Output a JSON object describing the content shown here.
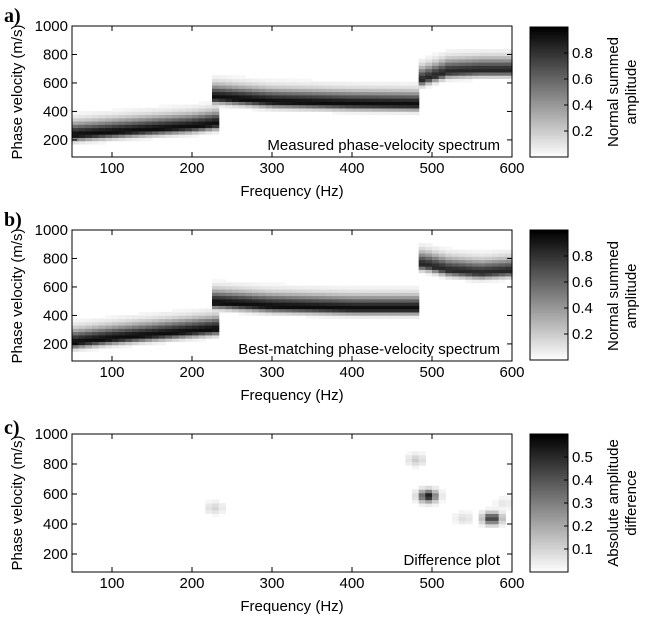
{
  "chart_data": [
    {
      "type": "heatmap",
      "panel_label": "a)",
      "annotation": "Measured phase-velocity spectrum",
      "xlabel": "Frequency (Hz)",
      "ylabel": "Phase velocity (m/s)",
      "xlim": [
        50,
        600
      ],
      "ylim": [
        80,
        1000
      ],
      "xticks": [
        100,
        200,
        300,
        400,
        500,
        600
      ],
      "yticks": [
        200,
        400,
        600,
        800,
        1000
      ],
      "colorbar": {
        "label": [
          "Normal summed",
          "amplitude"
        ],
        "range": [
          0,
          1
        ],
        "ticks": [
          0.2,
          0.4,
          0.6,
          0.8
        ]
      },
      "ridges": [
        {
          "x": [
            50,
            100,
            150,
            200,
            230
          ],
          "y": [
            235,
            255,
            275,
            295,
            315
          ],
          "peak": 0.95
        },
        {
          "x": [
            232,
            300,
            400,
            480
          ],
          "y": [
            500,
            470,
            455,
            450
          ],
          "peak": 0.95
        },
        {
          "x": [
            485,
            520,
            560,
            600
          ],
          "y": [
            620,
            680,
            690,
            690
          ],
          "peak": 0.85
        }
      ]
    },
    {
      "type": "heatmap",
      "panel_label": "b)",
      "annotation": "Best-matching phase-velocity spectrum",
      "xlabel": "Frequency (Hz)",
      "ylabel": "Phase velocity (m/s)",
      "xlim": [
        50,
        600
      ],
      "ylim": [
        80,
        1000
      ],
      "xticks": [
        100,
        200,
        300,
        400,
        500,
        600
      ],
      "yticks": [
        200,
        400,
        600,
        800,
        1000
      ],
      "colorbar": {
        "label": [
          "Normal summed",
          "amplitude"
        ],
        "range": [
          0,
          1
        ],
        "ticks": [
          0.2,
          0.4,
          0.6,
          0.8
        ]
      },
      "ridges": [
        {
          "x": [
            50,
            100,
            150,
            200,
            230
          ],
          "y": [
            210,
            240,
            265,
            290,
            305
          ],
          "peak": 0.95
        },
        {
          "x": [
            232,
            300,
            400,
            480
          ],
          "y": [
            490,
            465,
            450,
            450
          ],
          "peak": 0.95
        },
        {
          "x": [
            490,
            520,
            560,
            600
          ],
          "y": [
            760,
            720,
            700,
            715
          ],
          "peak": 0.85
        }
      ]
    },
    {
      "type": "heatmap",
      "panel_label": "c)",
      "annotation": "Difference plot",
      "xlabel": "Frequency (Hz)",
      "ylabel": "Phase velocity (m/s)",
      "xlim": [
        50,
        600
      ],
      "ylim": [
        80,
        1000
      ],
      "xticks": [
        100,
        200,
        300,
        400,
        500,
        600
      ],
      "yticks": [
        200,
        400,
        600,
        800,
        1000
      ],
      "colorbar": {
        "label": [
          "Absolute amplitude",
          "difference"
        ],
        "range": [
          0,
          0.6
        ],
        "ticks": [
          0.1,
          0.2,
          0.3,
          0.4,
          0.5
        ]
      },
      "spots": [
        {
          "x": 495,
          "y": 590,
          "value": 0.55
        },
        {
          "x": 575,
          "y": 440,
          "value": 0.5
        },
        {
          "x": 480,
          "y": 830,
          "value": 0.12
        },
        {
          "x": 540,
          "y": 440,
          "value": 0.08
        },
        {
          "x": 228,
          "y": 510,
          "value": 0.1
        },
        {
          "x": 590,
          "y": 540,
          "value": 0.06
        }
      ]
    }
  ]
}
